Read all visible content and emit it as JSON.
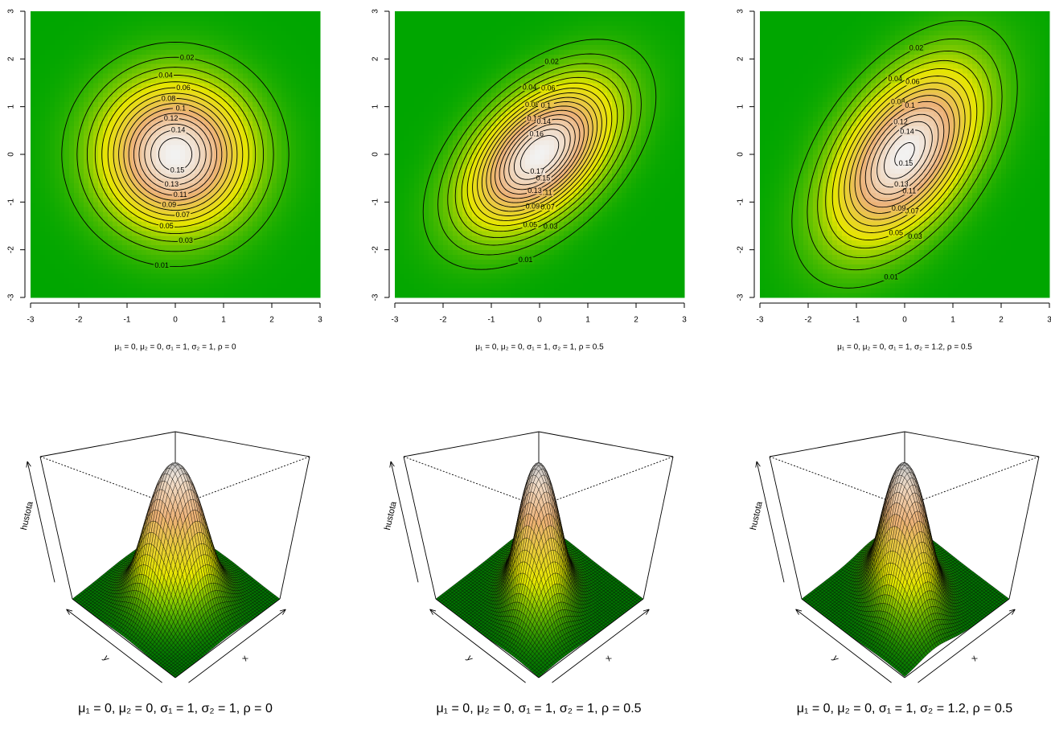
{
  "chart_data": [
    {
      "type": "contour",
      "subtitle": "μ₁ = 0, μ₂ = 0, σ₁ = 1, σ₂ = 1, ρ = 0",
      "density": {
        "mu": [
          0,
          0
        ],
        "sigma": [
          1,
          1
        ],
        "rho": 0
      },
      "xlim": [
        -3,
        3
      ],
      "ylim": [
        -3,
        3
      ],
      "xticks": [
        -3,
        -2,
        -1,
        0,
        1,
        2,
        3
      ],
      "yticks": [
        -3,
        -2,
        -1,
        0,
        1,
        2,
        3
      ],
      "levels": [
        0.01,
        0.02,
        0.03,
        0.04,
        0.05,
        0.06,
        0.07,
        0.08,
        0.09,
        0.1,
        0.11,
        0.12,
        0.13,
        0.14,
        0.15
      ],
      "colors": [
        "#00A600",
        "#E6E600",
        "#ECB176",
        "#F2F2F2"
      ]
    },
    {
      "type": "contour",
      "subtitle": "μ₁ = 0, μ₂ = 0, σ₁ = 1, σ₂ = 1, ρ = 0.5",
      "density": {
        "mu": [
          0,
          0
        ],
        "sigma": [
          1,
          1
        ],
        "rho": 0.5
      },
      "xlim": [
        -3,
        3
      ],
      "ylim": [
        -3,
        3
      ],
      "xticks": [
        -3,
        -2,
        -1,
        0,
        1,
        2,
        3
      ],
      "yticks": [
        -3,
        -2,
        -1,
        0,
        1,
        2,
        3
      ],
      "levels": [
        0.01,
        0.02,
        0.03,
        0.04,
        0.05,
        0.06,
        0.07,
        0.08,
        0.09,
        0.1,
        0.11,
        0.12,
        0.13,
        0.14,
        0.15,
        0.16,
        0.17
      ],
      "colors": [
        "#00A600",
        "#E6E600",
        "#ECB176",
        "#F2F2F2"
      ]
    },
    {
      "type": "contour",
      "subtitle": "μ₁ = 0, μ₂ = 0, σ₁ = 1, σ₂ = 1.2, ρ = 0.5",
      "density": {
        "mu": [
          0,
          0
        ],
        "sigma": [
          1,
          1.2
        ],
        "rho": 0.5
      },
      "xlim": [
        -3,
        3
      ],
      "ylim": [
        -3,
        3
      ],
      "xticks": [
        -3,
        -2,
        -1,
        0,
        1,
        2,
        3
      ],
      "yticks": [
        -3,
        -2,
        -1,
        0,
        1,
        2,
        3
      ],
      "levels": [
        0.01,
        0.02,
        0.03,
        0.04,
        0.05,
        0.06,
        0.07,
        0.08,
        0.09,
        0.1,
        0.11,
        0.12,
        0.13,
        0.14,
        0.15
      ],
      "colors": [
        "#00A600",
        "#E6E600",
        "#ECB176",
        "#F2F2F2"
      ]
    },
    {
      "type": "surface",
      "subtitle": "μ₁ = 0, μ₂ = 0, σ₁ = 1, σ₂ = 1, ρ = 0",
      "density": {
        "mu": [
          0,
          0
        ],
        "sigma": [
          1,
          1
        ],
        "rho": 0
      },
      "xlim": [
        -3,
        3
      ],
      "ylim": [
        -3,
        3
      ],
      "xlabel": "x",
      "ylabel": "y",
      "zlabel": "hustota",
      "colors": [
        "#00A600",
        "#E6E600",
        "#ECB176",
        "#F2F2F2"
      ]
    },
    {
      "type": "surface",
      "subtitle": "μ₁ = 0, μ₂ = 0, σ₁ = 1, σ₂ = 1, ρ = 0.5",
      "density": {
        "mu": [
          0,
          0
        ],
        "sigma": [
          1,
          1
        ],
        "rho": 0.5
      },
      "xlim": [
        -3,
        3
      ],
      "ylim": [
        -3,
        3
      ],
      "xlabel": "x",
      "ylabel": "y",
      "zlabel": "hustota",
      "colors": [
        "#00A600",
        "#E6E600",
        "#ECB176",
        "#F2F2F2"
      ]
    },
    {
      "type": "surface",
      "subtitle": "μ₁ = 0, μ₂ = 0, σ₁ = 1, σ₂ = 1.2, ρ = 0.5",
      "density": {
        "mu": [
          0,
          0
        ],
        "sigma": [
          1,
          1.2
        ],
        "rho": 0.5
      },
      "xlim": [
        -3,
        3
      ],
      "ylim": [
        -3,
        3
      ],
      "xlabel": "x",
      "ylabel": "y",
      "zlabel": "hustota",
      "colors": [
        "#00A600",
        "#E6E600",
        "#ECB176",
        "#F2F2F2"
      ]
    }
  ]
}
